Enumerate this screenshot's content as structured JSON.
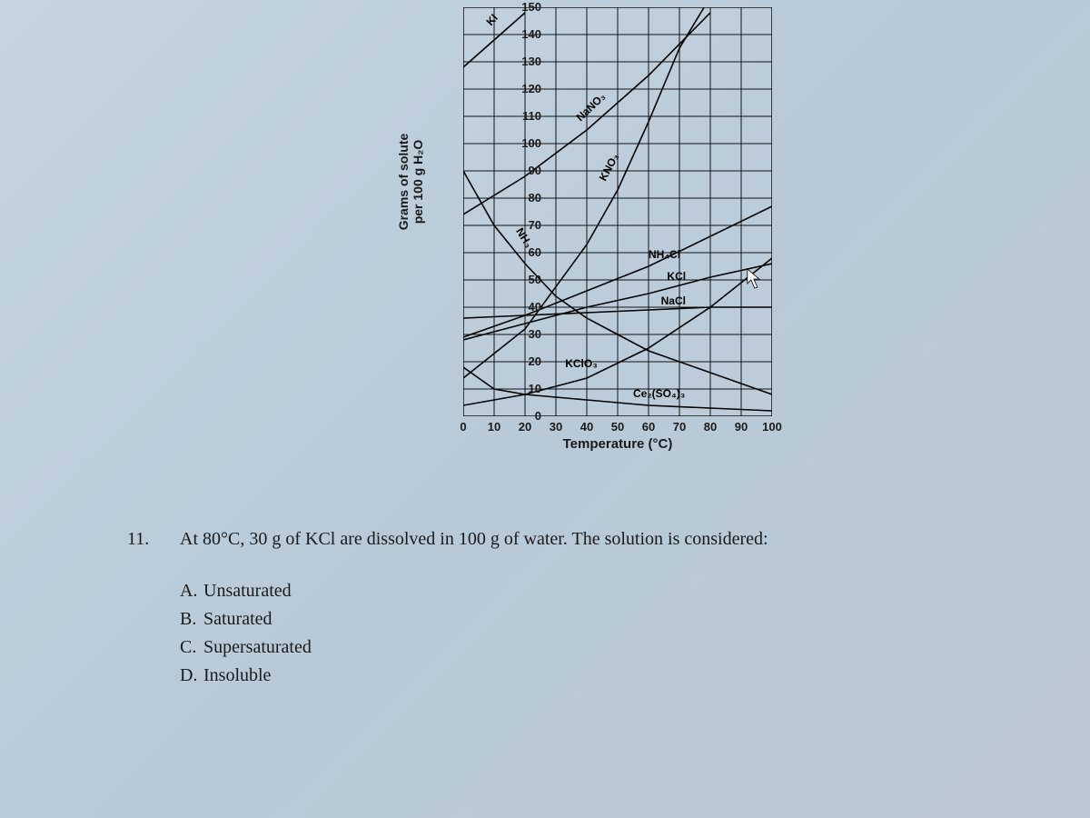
{
  "chart": {
    "type": "line",
    "xlabel": "Temperature (°C)",
    "ylabel_line1": "Grams of solute",
    "ylabel_line2": "per 100 g H₂O",
    "xlim": [
      0,
      100
    ],
    "ylim": [
      0,
      150
    ],
    "xtick_step": 10,
    "ytick_step": 10,
    "xticks": [
      0,
      10,
      20,
      30,
      40,
      50,
      60,
      70,
      80,
      90,
      100
    ],
    "yticks": [
      0,
      10,
      20,
      30,
      40,
      50,
      60,
      70,
      80,
      90,
      100,
      110,
      120,
      130,
      140,
      150
    ],
    "grid_color": "#000000",
    "grid_width": 1,
    "axis_color": "#000000",
    "axis_width": 1.4,
    "background_color": "transparent",
    "label_fontsize": 14,
    "tick_fontsize": 13,
    "curve_stroke": "#000000",
    "curve_width": 1.6,
    "series": {
      "KI": {
        "label": "KI",
        "points": [
          [
            0,
            128
          ],
          [
            10,
            138
          ],
          [
            20,
            148
          ]
        ],
        "label_xy": [
          9,
          143
        ],
        "label_rot": -48
      },
      "NaNO3": {
        "label": "NaNO₃",
        "points": [
          [
            0,
            74
          ],
          [
            20,
            88
          ],
          [
            40,
            105
          ],
          [
            60,
            125
          ],
          [
            80,
            148
          ]
        ],
        "label_xy": [
          38,
          108
        ],
        "label_rot": -44
      },
      "KNO3": {
        "label": "KNO₃",
        "points": [
          [
            0,
            14
          ],
          [
            20,
            32
          ],
          [
            40,
            63
          ],
          [
            50,
            83
          ],
          [
            60,
            108
          ],
          [
            70,
            135
          ],
          [
            78,
            150
          ]
        ],
        "label_xy": [
          46,
          86
        ],
        "label_rot": -62
      },
      "NH3": {
        "label": "NH₃",
        "points": [
          [
            0,
            90
          ],
          [
            10,
            70
          ],
          [
            20,
            56
          ],
          [
            30,
            44
          ],
          [
            40,
            36
          ],
          [
            50,
            30
          ],
          [
            60,
            24
          ],
          [
            70,
            20
          ],
          [
            80,
            16
          ],
          [
            90,
            12
          ],
          [
            100,
            8
          ]
        ],
        "label_xy": [
          17,
          68
        ],
        "label_rot": 58
      },
      "NH4Cl": {
        "label": "NH₄Cl",
        "points": [
          [
            0,
            29
          ],
          [
            20,
            37
          ],
          [
            40,
            46
          ],
          [
            60,
            55
          ],
          [
            80,
            66
          ],
          [
            100,
            77
          ]
        ],
        "label_xy": [
          60,
          58
        ],
        "label_rot": 0
      },
      "KCl": {
        "label": "KCl",
        "points": [
          [
            0,
            28
          ],
          [
            20,
            34
          ],
          [
            40,
            40
          ],
          [
            60,
            45
          ],
          [
            80,
            51
          ],
          [
            100,
            56
          ]
        ],
        "label_xy": [
          66,
          50
        ],
        "label_rot": 0
      },
      "NaCl": {
        "label": "NaCl",
        "points": [
          [
            0,
            36
          ],
          [
            20,
            37
          ],
          [
            40,
            38
          ],
          [
            60,
            39
          ],
          [
            80,
            40
          ],
          [
            100,
            40
          ]
        ],
        "label_xy": [
          64,
          41
        ],
        "label_rot": 0
      },
      "KClO3": {
        "label": "KClO₃",
        "points": [
          [
            0,
            4
          ],
          [
            20,
            8
          ],
          [
            40,
            14
          ],
          [
            60,
            25
          ],
          [
            80,
            40
          ],
          [
            100,
            58
          ]
        ],
        "label_xy": [
          33,
          18
        ],
        "label_rot": 0
      },
      "Ce2SO43": {
        "label": "Ce₂(SO₄)₃",
        "points": [
          [
            0,
            18
          ],
          [
            10,
            10
          ],
          [
            20,
            8
          ],
          [
            40,
            6
          ],
          [
            60,
            4
          ],
          [
            80,
            3
          ],
          [
            100,
            2
          ]
        ],
        "label_xy": [
          55,
          7
        ],
        "label_rot": 0
      }
    },
    "cursor_xy": [
      92,
      54
    ]
  },
  "question": {
    "number": "11.",
    "text": "At 80°C, 30 g of KCl are dissolved in 100 g of water. The solution is considered:",
    "choices": [
      {
        "letter": "A.",
        "text": "Unsaturated"
      },
      {
        "letter": "B.",
        "text": "Saturated"
      },
      {
        "letter": "C.",
        "text": "Supersaturated"
      },
      {
        "letter": "D.",
        "text": "Insoluble"
      }
    ]
  }
}
